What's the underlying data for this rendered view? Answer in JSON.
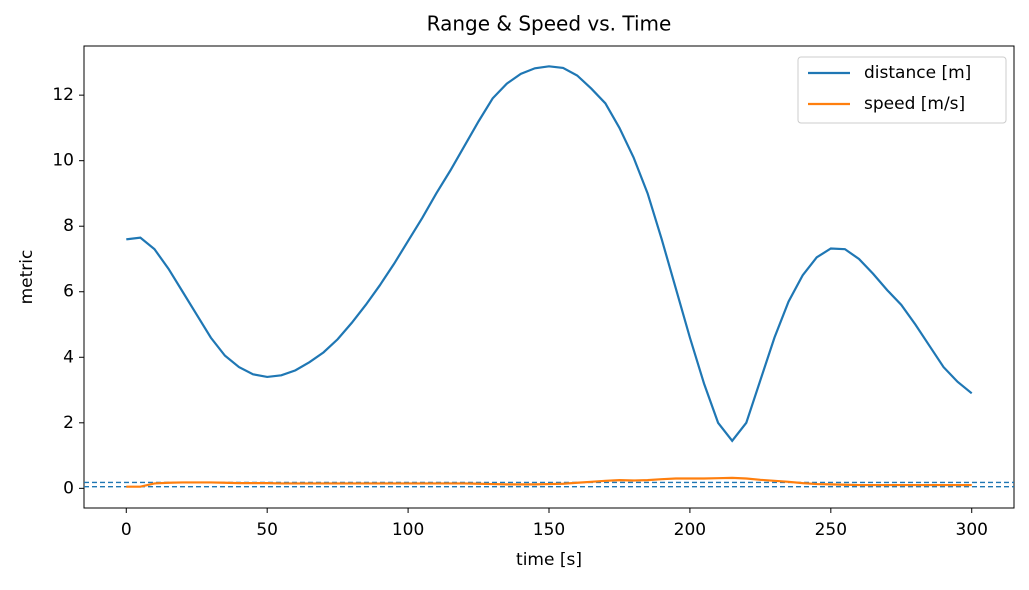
{
  "chart_data": {
    "type": "line",
    "title": "Range & Speed vs. Time",
    "xlabel": "time [s]",
    "ylabel": "metric",
    "x": [
      0,
      5,
      10,
      15,
      20,
      25,
      30,
      35,
      40,
      45,
      50,
      55,
      60,
      65,
      70,
      75,
      80,
      85,
      90,
      95,
      100,
      105,
      110,
      115,
      120,
      125,
      130,
      135,
      140,
      145,
      150,
      155,
      160,
      165,
      170,
      175,
      180,
      185,
      190,
      195,
      200,
      205,
      210,
      215,
      220,
      225,
      230,
      235,
      240,
      245,
      250,
      255,
      260,
      265,
      270,
      275,
      280,
      285,
      290,
      295,
      300
    ],
    "series": [
      {
        "name": "distance [m]",
        "color": "#1f77b4",
        "values": [
          7.6,
          7.65,
          7.3,
          6.7,
          6.0,
          5.3,
          4.6,
          4.05,
          3.7,
          3.48,
          3.4,
          3.45,
          3.6,
          3.85,
          4.15,
          4.55,
          5.05,
          5.6,
          6.2,
          6.85,
          7.55,
          8.25,
          9.0,
          9.7,
          10.45,
          11.2,
          11.9,
          12.35,
          12.65,
          12.82,
          12.88,
          12.83,
          12.6,
          12.2,
          11.75,
          11.0,
          10.1,
          9.0,
          7.6,
          6.1,
          4.6,
          3.2,
          2.0,
          1.45,
          2.0,
          3.3,
          4.6,
          5.7,
          6.5,
          7.05,
          7.32,
          7.3,
          7.0,
          6.55,
          6.05,
          5.6,
          5.0,
          4.35,
          3.7,
          3.25,
          2.9
        ]
      },
      {
        "name": "speed [m/s]",
        "color": "#ff7f0e",
        "values": [
          0.05,
          0.05,
          0.15,
          0.17,
          0.18,
          0.18,
          0.18,
          0.17,
          0.16,
          0.16,
          0.16,
          0.15,
          0.15,
          0.15,
          0.15,
          0.15,
          0.15,
          0.15,
          0.15,
          0.15,
          0.15,
          0.15,
          0.15,
          0.15,
          0.15,
          0.14,
          0.13,
          0.12,
          0.12,
          0.12,
          0.13,
          0.14,
          0.17,
          0.2,
          0.23,
          0.25,
          0.24,
          0.25,
          0.28,
          0.3,
          0.3,
          0.3,
          0.31,
          0.32,
          0.3,
          0.26,
          0.23,
          0.2,
          0.16,
          0.13,
          0.12,
          0.11,
          0.1,
          0.1,
          0.1,
          0.1,
          0.1,
          0.1,
          0.1,
          0.1,
          0.1
        ]
      }
    ],
    "hlines": [
      0.18,
      0.05
    ],
    "hline_color": "#1f77b4",
    "xlim": [
      -15,
      315
    ],
    "xticks": [
      0,
      50,
      100,
      150,
      200,
      250,
      300
    ],
    "ylim": [
      -0.6,
      13.5
    ],
    "yticks": [
      0,
      2,
      4,
      6,
      8,
      10,
      12
    ],
    "legend": "upper right"
  }
}
